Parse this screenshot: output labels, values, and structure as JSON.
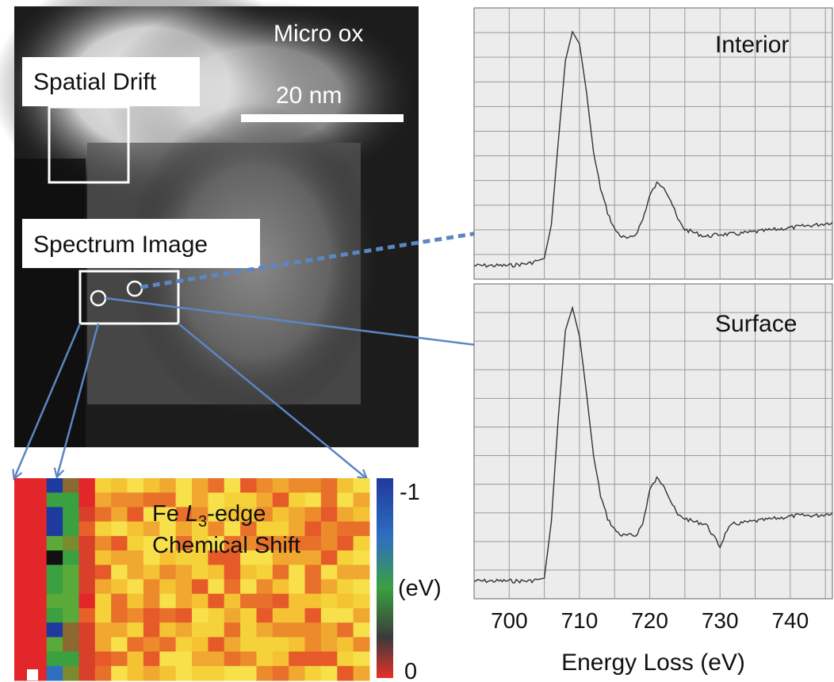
{
  "micrograph": {
    "title": "Micro ox",
    "scale_bar_label": "20 nm",
    "spatial_drift_label": "Spatial Drift",
    "spectrum_image_label": "Spectrum Image"
  },
  "heatmap": {
    "title_prefix": "Fe ",
    "title_l": "L",
    "title_sub": "3",
    "title_suffix": "-edge",
    "title_line2": "Chemical Shift",
    "colorbar_top": "-1",
    "colorbar_mid": "(eV)",
    "colorbar_bottom": "0",
    "colorbar_colors": [
      "#1f3a9e",
      "#2f6fc0",
      "#3aa040",
      "#3a3a3a",
      "#e8302a"
    ]
  },
  "chart_data": [
    {
      "type": "line",
      "title": "Interior",
      "xlim": [
        695,
        746
      ],
      "x": [
        695,
        700,
        703,
        705,
        706,
        707,
        708,
        709,
        710,
        711,
        712,
        713,
        714,
        715,
        716,
        717,
        718,
        719,
        720,
        721,
        722,
        723,
        724,
        725,
        726,
        728,
        730,
        732,
        735,
        738,
        741,
        744,
        746
      ],
      "y": [
        0.03,
        0.03,
        0.04,
        0.06,
        0.2,
        0.55,
        0.88,
        1.0,
        0.95,
        0.75,
        0.5,
        0.35,
        0.25,
        0.18,
        0.15,
        0.14,
        0.16,
        0.22,
        0.32,
        0.37,
        0.36,
        0.3,
        0.22,
        0.18,
        0.17,
        0.15,
        0.16,
        0.16,
        0.17,
        0.18,
        0.19,
        0.2,
        0.21
      ],
      "grid": true
    },
    {
      "type": "line",
      "title": "Surface",
      "xlabel": "Energy Loss (eV)",
      "xticks": [
        700,
        710,
        720,
        730,
        740
      ],
      "xlim": [
        695,
        746
      ],
      "x": [
        695,
        700,
        703,
        705,
        706,
        707,
        708,
        709,
        710,
        711,
        712,
        713,
        714,
        715,
        716,
        717,
        718,
        719,
        720,
        721,
        722,
        723,
        724,
        725,
        726,
        728,
        730,
        731,
        732,
        735,
        738,
        741,
        744,
        746
      ],
      "y": [
        0.04,
        0.04,
        0.04,
        0.05,
        0.25,
        0.62,
        0.92,
        1.0,
        0.9,
        0.7,
        0.48,
        0.34,
        0.26,
        0.22,
        0.2,
        0.2,
        0.2,
        0.24,
        0.36,
        0.4,
        0.38,
        0.32,
        0.27,
        0.26,
        0.25,
        0.24,
        0.16,
        0.22,
        0.24,
        0.25,
        0.26,
        0.27,
        0.27,
        0.28
      ],
      "grid": true
    }
  ]
}
